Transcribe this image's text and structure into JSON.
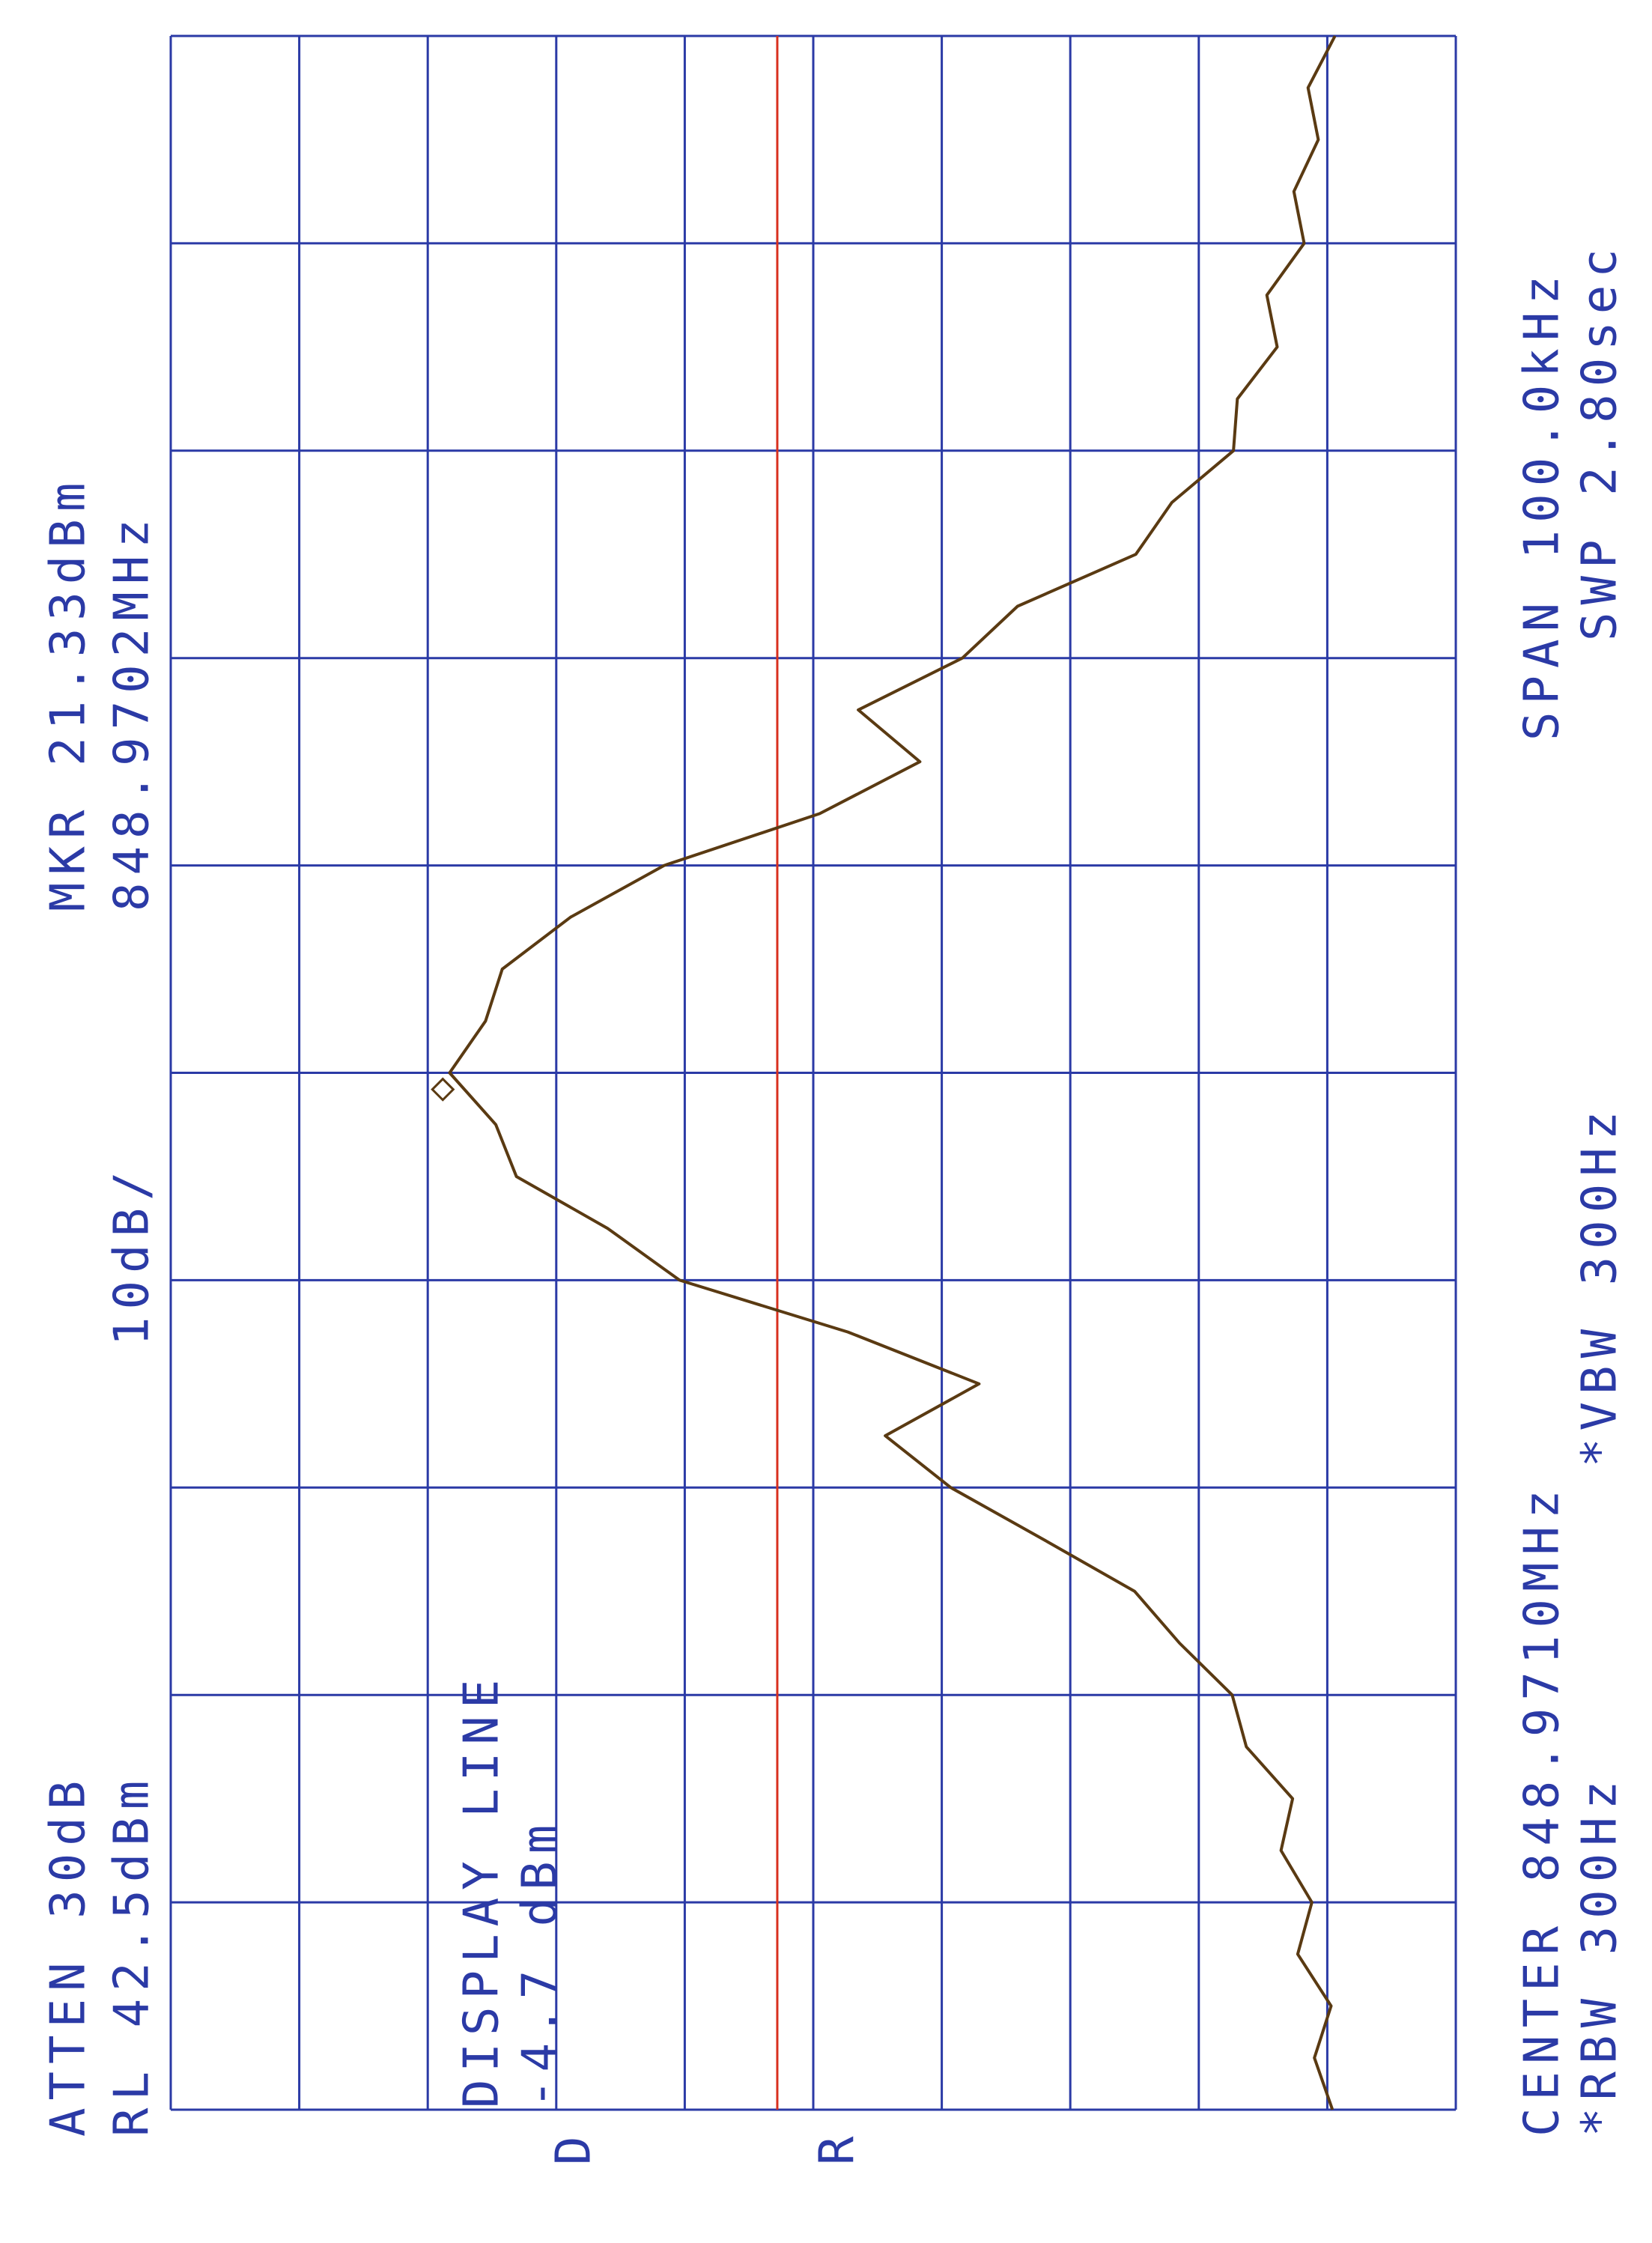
{
  "chart_data": {
    "type": "line",
    "atten": "ATTEN 30dB",
    "ref_level": "RL 42.5dBm",
    "marker_label": "MKR 21.33dBm",
    "marker_freq_label": "848.9702MHz",
    "scale": "10dB/",
    "display_line_label": "DISPLAY LINE",
    "display_line_value_label": "-4.7 dBm",
    "display_line": -4.7,
    "center": "CENTER 848.9710MHz",
    "span": "SPAN 100.0kHz",
    "rbw": "*RBW 300Hz",
    "vbw": "*VBW 300Hz",
    "sweep": "SWP 2.80sec",
    "side_labels": [
      "D",
      "R"
    ],
    "xlim": [
      848.921,
      849.021
    ],
    "ylim": [
      -57.5,
      42.5
    ],
    "xgrid": [
      848.921,
      848.931,
      848.941,
      848.951,
      848.961,
      848.971,
      848.981,
      848.991,
      849.001,
      849.011,
      849.021
    ],
    "ygrid": [
      42.5,
      32.5,
      22.5,
      12.5,
      2.5,
      -7.5,
      -17.5,
      -27.5,
      -37.5,
      -47.5,
      -57.5
    ],
    "grid_color": "#2b3aa6",
    "display_line_color": "#d8301e",
    "color": "#5a3a12",
    "marker_point": {
      "x": 848.9702,
      "y": 21.33
    },
    "x": [
      848.921,
      848.9235,
      848.926,
      848.9285,
      848.931,
      848.9335,
      848.936,
      848.9385,
      848.941,
      848.9435,
      848.946,
      848.9485,
      848.951,
      848.9535,
      848.956,
      848.9585,
      848.961,
      848.9635,
      848.966,
      848.9685,
      848.971,
      848.9735,
      848.976,
      848.9785,
      848.981,
      848.9835,
      848.986,
      848.9885,
      848.991,
      848.9935,
      848.996,
      848.9985,
      849.001,
      849.0035,
      849.006,
      849.0085,
      849.011,
      849.0135,
      849.016,
      849.0185,
      849.021
    ],
    "values": [
      -47.9,
      -46.5,
      -47.8,
      -45.2,
      -46.3,
      -43.9,
      -44.8,
      -41.2,
      -40.1,
      -36.0,
      -32.5,
      -25.4,
      -18.2,
      -13.1,
      -20.4,
      -10.2,
      2.9,
      8.5,
      15.6,
      17.2,
      20.8,
      18.0,
      16.7,
      11.4,
      4.1,
      -8.0,
      -15.8,
      -11.0,
      -19.1,
      -23.4,
      -32.6,
      -35.4,
      -40.2,
      -40.5,
      -43.6,
      -42.8,
      -45.7,
      -44.9,
      -46.8,
      -46.0,
      -48.1
    ]
  }
}
